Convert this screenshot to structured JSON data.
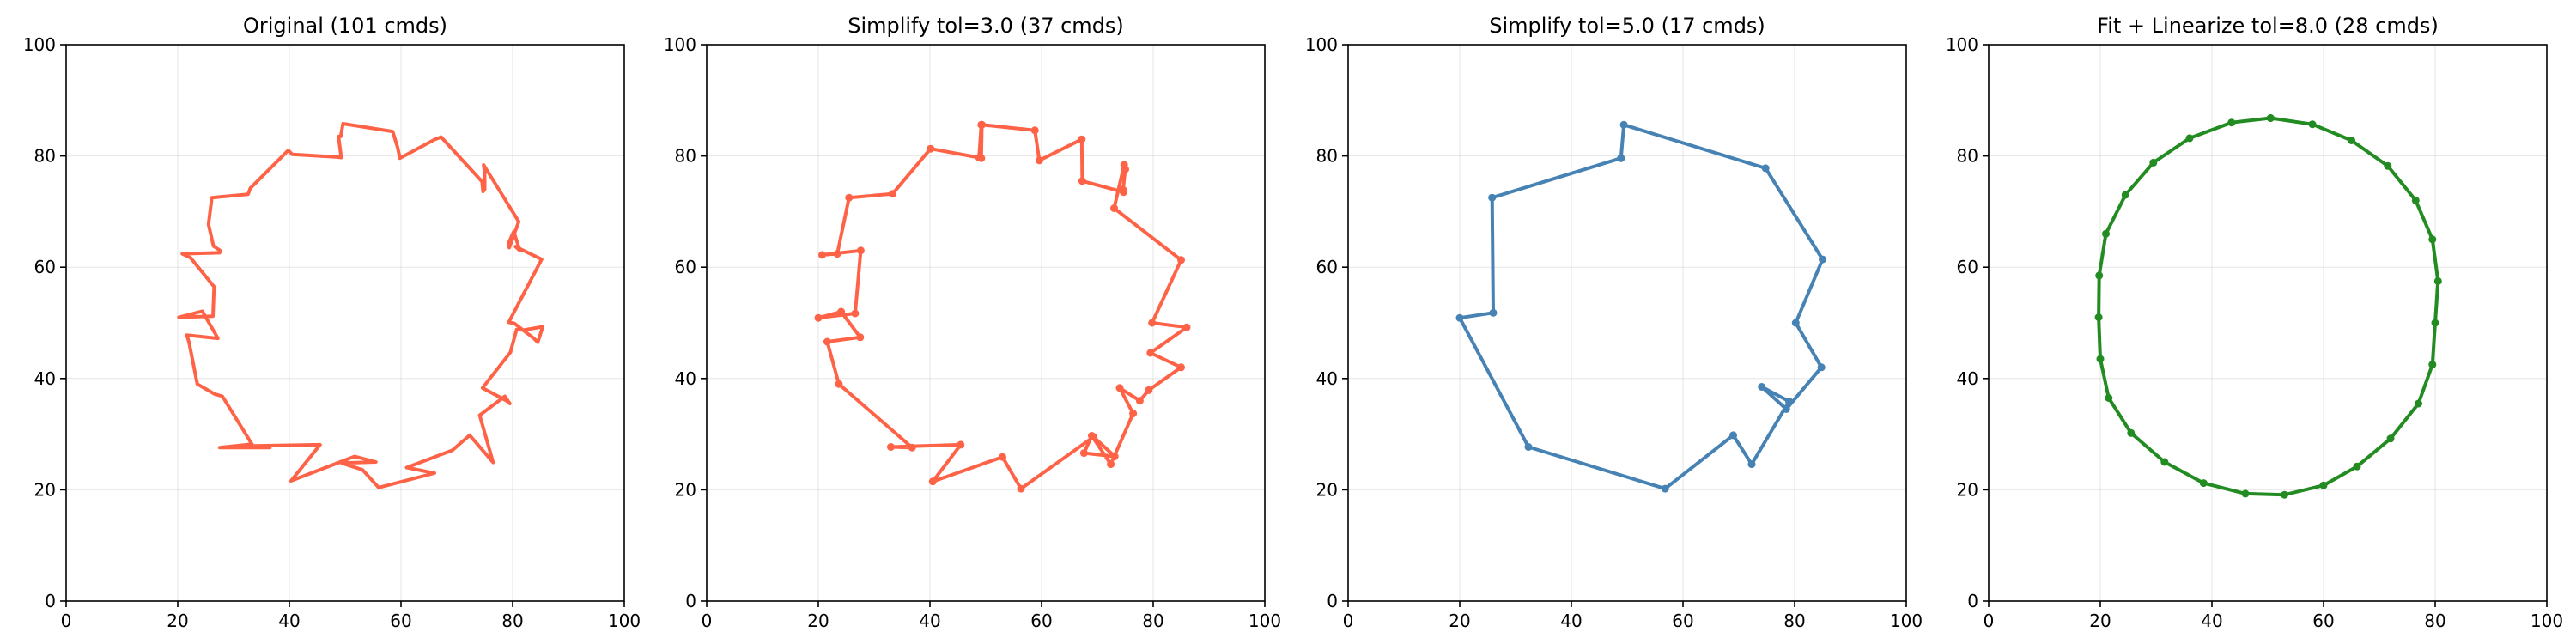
{
  "chart_data": [
    {
      "type": "line",
      "title": "Original (101 cmds)",
      "xlabel": "",
      "ylabel": "",
      "xlim": [
        0,
        100
      ],
      "ylim": [
        0,
        100
      ],
      "xticks": [
        "0",
        "20",
        "40",
        "60",
        "80",
        "100"
      ],
      "yticks": [
        "0",
        "20",
        "40",
        "60",
        "80",
        "100"
      ],
      "grid": true,
      "color": "#ff6347",
      "markers": false,
      "series": [
        {
          "x": [
            49.2,
            49.6,
            58.5,
            59.4,
            59.8,
            66.1,
            67.2,
            74.5,
            74.7,
            75.0,
            75.0,
            74.8,
            81.1,
            79.4,
            79.3,
            80.2,
            81.3,
            80.5,
            85.2,
            79.3,
            80.3,
            83.8,
            84.5,
            85.4,
            82.0,
            80.7,
            79.6,
            74.6,
            78.9,
            79.5,
            78.6,
            74.1,
            76.5,
            72.3,
            69.2,
            61.0,
            66.0,
            56.0,
            53.1,
            49.4,
            55.5,
            51.7,
            40.3,
            45.5,
            33.6,
            32.7,
            36.5,
            27.5,
            33.3,
            28.0,
            26.6,
            23.5,
            22.0,
            21.6,
            27.2,
            24.4,
            20.2,
            26.3,
            26.5,
            22.3,
            20.8,
            27.5,
            27.6,
            26.4,
            25.5,
            26.1,
            32.6,
            33.0,
            39.8,
            40.5,
            48.6,
            49.3,
            48.8
          ],
          "y": [
            83.5,
            85.8,
            84.4,
            81.5,
            79.6,
            83.0,
            83.4,
            75.4,
            73.6,
            74.0,
            76.9,
            78.4,
            68.2,
            63.5,
            64.4,
            66.4,
            63.0,
            63.7,
            61.4,
            50.1,
            49.9,
            47.2,
            46.5,
            49.3,
            48.7,
            48.8,
            44.7,
            38.3,
            36.0,
            35.5,
            36.8,
            33.4,
            24.9,
            29.8,
            27.1,
            24.0,
            23.0,
            20.4,
            23.6,
            24.8,
            25.0,
            26.0,
            21.6,
            28.1,
            27.9,
            27.7,
            27.6,
            27.6,
            28.2,
            36.8,
            37.2,
            39.0,
            46.6,
            47.8,
            47.2,
            52.1,
            51.0,
            51.2,
            56.5,
            61.7,
            62.4,
            62.6,
            63.0,
            63.8,
            67.7,
            72.5,
            73.1,
            74.2,
            81.0,
            80.3,
            79.8,
            79.7,
            83.5
          ]
        }
      ]
    },
    {
      "type": "line",
      "title": "Simplify tol=3.0 (37 cmds)",
      "xlabel": "",
      "ylabel": "",
      "xlim": [
        0,
        100
      ],
      "ylim": [
        0,
        100
      ],
      "xticks": [
        "0",
        "20",
        "40",
        "60",
        "80",
        "100"
      ],
      "yticks": [
        "0",
        "20",
        "40",
        "60",
        "80",
        "100"
      ],
      "grid": true,
      "color": "#ff6347",
      "markers": true,
      "series": [
        {
          "x": [
            49.2,
            49.3,
            58.8,
            59.6,
            67.2,
            67.3,
            74.7,
            74.6,
            75.0,
            74.8,
            73.0,
            85.0,
            79.8,
            86.0,
            79.5,
            85.0,
            79.2,
            77.6,
            74.0,
            76.4,
            72.4,
            69.0,
            67.6,
            73.1,
            69.3,
            56.3,
            53.0,
            40.5,
            45.5,
            33.0,
            36.8,
            23.7,
            21.6,
            27.5,
            24.1,
            20.0,
            26.6,
            27.6,
            20.7,
            23.4,
            25.5,
            33.3,
            40.1,
            48.8,
            49.2
          ],
          "y": [
            79.6,
            85.6,
            84.6,
            79.2,
            83.0,
            75.5,
            73.5,
            73.9,
            77.6,
            78.4,
            70.6,
            61.3,
            50.0,
            49.2,
            44.6,
            42.0,
            37.9,
            36.0,
            38.3,
            33.7,
            24.6,
            29.7,
            26.6,
            26.0,
            29.5,
            20.2,
            25.9,
            21.5,
            28.1,
            27.7,
            27.6,
            39.0,
            46.6,
            47.4,
            52.0,
            50.9,
            51.7,
            63.0,
            62.2,
            62.4,
            72.5,
            73.2,
            81.3,
            79.7,
            85.6
          ]
        }
      ]
    },
    {
      "type": "line",
      "title": "Simplify tol=5.0 (17 cmds)",
      "xlabel": "",
      "ylabel": "",
      "xlim": [
        0,
        100
      ],
      "ylim": [
        0,
        100
      ],
      "xticks": [
        "0",
        "20",
        "40",
        "60",
        "80",
        "100"
      ],
      "yticks": [
        "0",
        "20",
        "40",
        "60",
        "80",
        "100"
      ],
      "grid": true,
      "color": "#4682b4",
      "markers": true,
      "series": [
        {
          "x": [
            48.9,
            49.4,
            74.8,
            85.0,
            80.2,
            84.8,
            78.5,
            74.1,
            79.0,
            72.3,
            69.0,
            56.8,
            32.3,
            20.0,
            26.0,
            25.8,
            48.9
          ],
          "y": [
            79.6,
            85.6,
            77.8,
            61.4,
            50.0,
            42.0,
            34.5,
            38.5,
            35.9,
            24.6,
            29.8,
            20.2,
            27.7,
            50.9,
            51.8,
            72.5,
            79.6
          ]
        }
      ]
    },
    {
      "type": "line",
      "title": "Fit + Linearize tol=8.0 (28 cmds)",
      "xlabel": "",
      "ylabel": "",
      "xlim": [
        0,
        100
      ],
      "ylim": [
        0,
        100
      ],
      "xticks": [
        "0",
        "20",
        "40",
        "60",
        "80",
        "100"
      ],
      "yticks": [
        "0",
        "20",
        "40",
        "60",
        "80",
        "100"
      ],
      "grid": true,
      "color": "#228b22",
      "markers": true,
      "series": [
        {
          "x": [
            50.5,
            58.0,
            65.0,
            71.5,
            76.5,
            79.5,
            80.5,
            80.0,
            79.5,
            77.0,
            72.0,
            66.0,
            60.0,
            53.0,
            46.0,
            38.5,
            31.5,
            25.5,
            21.5,
            20.0,
            19.7,
            19.8,
            21.0,
            24.5,
            29.5,
            36.0,
            43.5,
            50.5
          ],
          "y": [
            86.8,
            85.7,
            82.8,
            78.2,
            72.0,
            65.0,
            57.5,
            50.0,
            42.5,
            35.5,
            29.2,
            24.2,
            20.8,
            19.1,
            19.3,
            21.2,
            25.0,
            30.2,
            36.5,
            43.5,
            51.0,
            58.5,
            66.0,
            73.0,
            78.8,
            83.2,
            86.0,
            86.8
          ]
        }
      ]
    }
  ]
}
